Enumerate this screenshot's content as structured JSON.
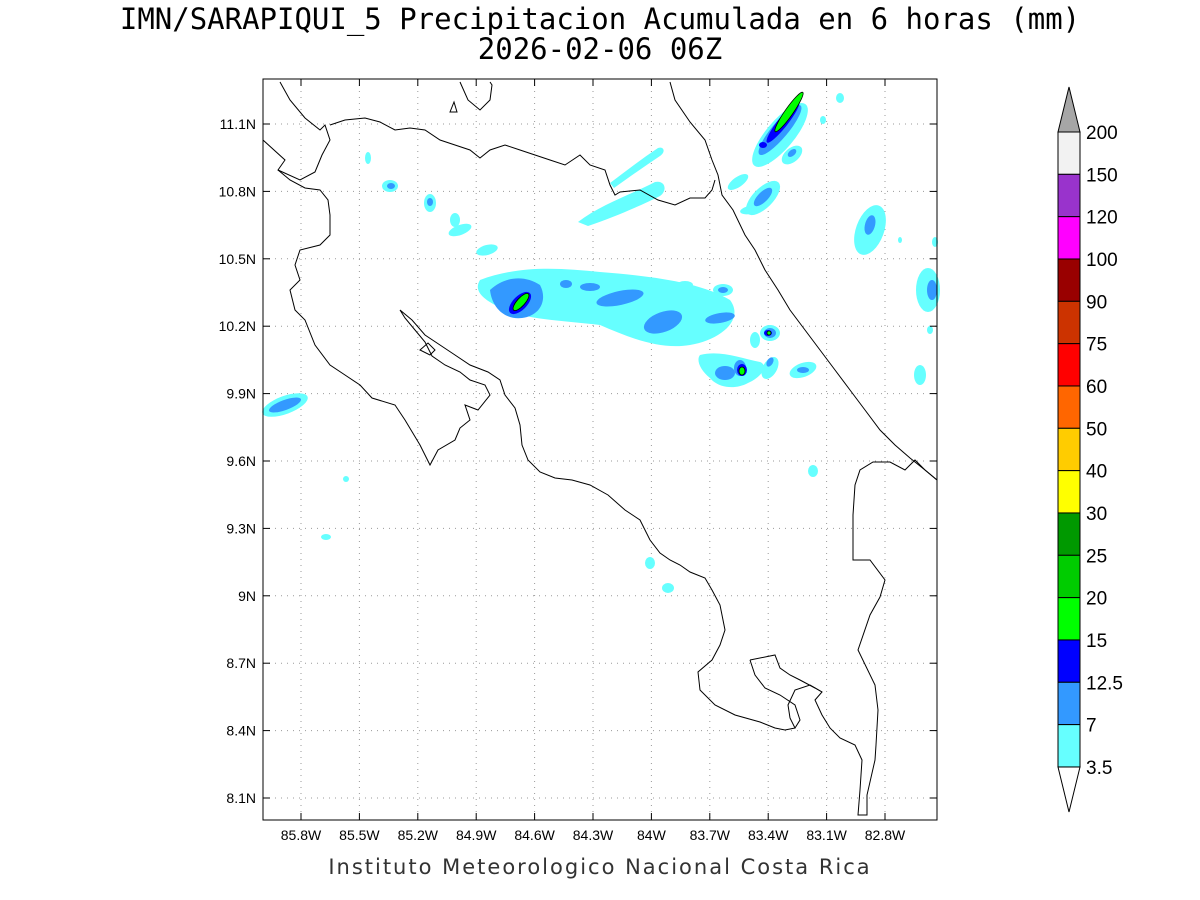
{
  "title_line1": "IMN/SARAPIQUI_5 Precipitacion Acumulada en 6 horas (mm)",
  "title_line2": "2026-02-06 06Z",
  "footer": "Instituto Meteorologico Nacional Costa Rica",
  "lat_ticks": [
    "11.1N",
    "10.8N",
    "10.5N",
    "10.2N",
    "9.9N",
    "9.6N",
    "9.3N",
    "9N",
    "8.7N",
    "8.4N",
    "8.1N"
  ],
  "lon_ticks": [
    "85.8W",
    "85.5W",
    "85.2W",
    "84.9W",
    "84.6W",
    "84.3W",
    "84W",
    "83.7W",
    "83.4W",
    "83.1W",
    "82.8W"
  ],
  "colorbar": {
    "labels": [
      "200",
      "150",
      "120",
      "100",
      "90",
      "75",
      "60",
      "50",
      "40",
      "30",
      "25",
      "20",
      "15",
      "12.5",
      "7",
      "3.5"
    ],
    "colors": [
      "#f2f2f2",
      "#9933cc",
      "#ff00ff",
      "#990000",
      "#cc3300",
      "#ff0000",
      "#ff6600",
      "#ffcc00",
      "#ffff00",
      "#009900",
      "#00cc00",
      "#00ff00",
      "#0000ff",
      "#3399ff",
      "#66ffff"
    ],
    "top_arrow_color": "#a6a6a6",
    "bottom_arrow_color": "#ffffff"
  },
  "field_colors": {
    "light": "#66ffff",
    "medium": "#3399ff",
    "strong": "#0000ff",
    "green": "#00ff00"
  }
}
